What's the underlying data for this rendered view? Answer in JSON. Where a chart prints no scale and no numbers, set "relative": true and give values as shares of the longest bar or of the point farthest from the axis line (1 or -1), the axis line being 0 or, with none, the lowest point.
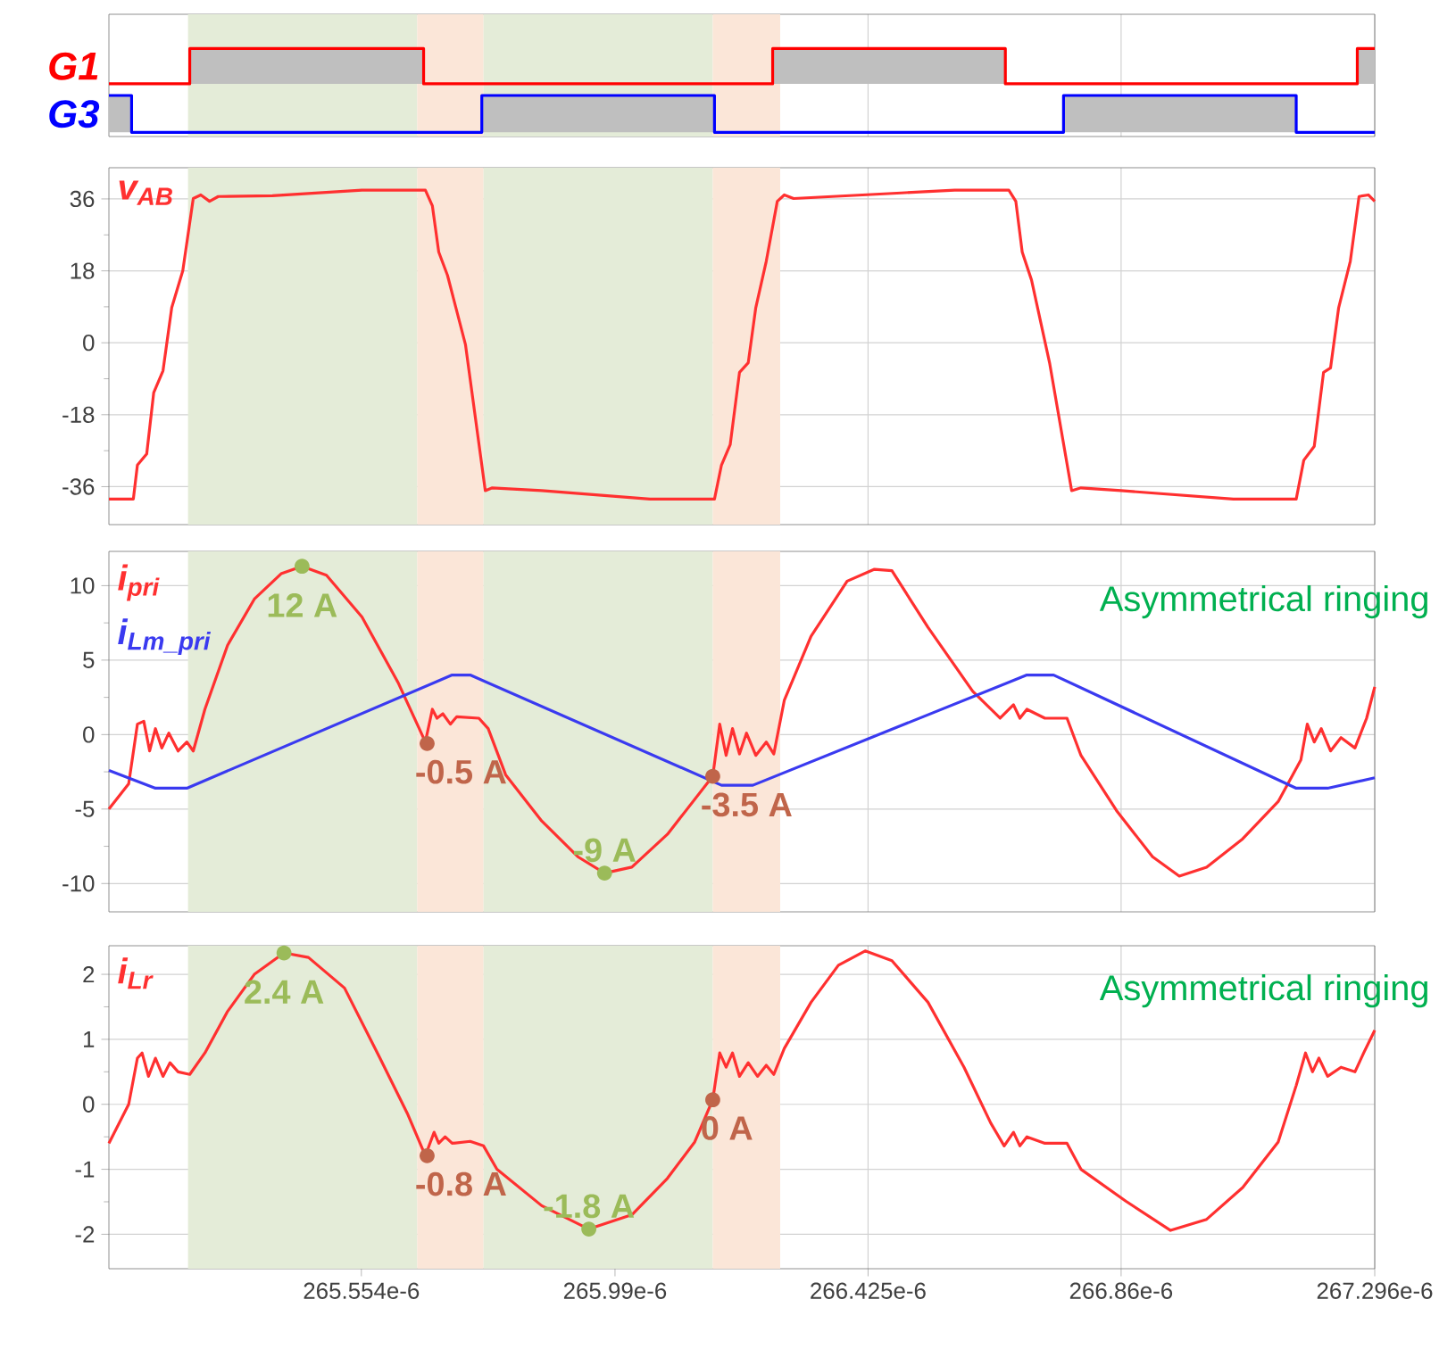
{
  "chart_data": [
    {
      "type": "step",
      "relative": true,
      "xlim": [
        0.00026512,
        0.000267296
      ],
      "xticks": [
        0.000265554,
        0.00026599,
        0.000266425,
        0.00026686,
        0.000267296
      ],
      "tick_labels": false,
      "grid": "x",
      "bands": [
        {
          "axis": "x",
          "from": 0.000265256,
          "to": 0.00026565,
          "color": "#e4ecd8"
        },
        {
          "axis": "x",
          "from": 0.00026565,
          "to": 0.000265764,
          "color": "#fbe6d8"
        },
        {
          "axis": "x",
          "from": 0.000265764,
          "to": 0.000266158,
          "color": "#e4ecd8"
        },
        {
          "axis": "x",
          "from": 0.000266158,
          "to": 0.000266274,
          "color": "#fbe6d8"
        }
      ],
      "series": [
        {
          "name": "G1",
          "color": "#ff0000",
          "x": [
            0.00026512,
            0.000265259,
            0.000265661,
            0.000266261,
            0.000266661,
            0.000267266,
            0.000267296
          ],
          "values": [
            0.58,
            1,
            0.58,
            1,
            0.58,
            1,
            1
          ]
        },
        {
          "name": "G3",
          "color": "#0000ff",
          "x": [
            0.00026512,
            0.000265159,
            0.000265761,
            0.000266161,
            0.000266761,
            0.000267161,
            0.000267296
          ],
          "values": [
            0.44,
            0,
            0.44,
            0,
            0.44,
            0,
            0
          ]
        }
      ]
    },
    {
      "type": "line",
      "xlim": [
        0.00026512,
        0.000267296
      ],
      "ylim": [
        -45.5,
        43.8
      ],
      "yticks": [
        -36,
        -18,
        0,
        18,
        36
      ],
      "xticks": [
        0.000265554,
        0.00026599,
        0.000266425,
        0.00026686,
        0.000267296
      ],
      "tick_labels": "y",
      "grid": true,
      "bands": [
        {
          "axis": "x",
          "from": 0.000265256,
          "to": 0.00026565,
          "color": "#e4ecd8"
        },
        {
          "axis": "x",
          "from": 0.00026565,
          "to": 0.000265764,
          "color": "#fbe6d8"
        },
        {
          "axis": "x",
          "from": 0.000265764,
          "to": 0.000266158,
          "color": "#e4ecd8"
        },
        {
          "axis": "x",
          "from": 0.000266158,
          "to": 0.000266274,
          "color": "#fbe6d8"
        }
      ],
      "series": [
        {
          "name": "v$_{AB}$",
          "color": "#ff3030",
          "x": [
            0.00026512,
            0.000265162,
            0.000265169,
            0.000265185,
            0.000265197,
            0.000265213,
            0.000265228,
            0.000265247,
            0.000265265,
            0.000265278,
            0.000265293,
            0.000265308,
            0.000265401,
            0.000265555,
            0.000265664,
            0.000265676,
            0.000265687,
            0.000265702,
            0.000265733,
            0.000265767,
            0.000265779,
            0.000265864,
            0.00026605,
            0.000266161,
            0.000266173,
            0.000266188,
            0.000266204,
            0.000266219,
            0.000266232,
            0.00026625,
            0.000266269,
            0.000266281,
            0.000266297,
            0.000266482,
            0.000266574,
            0.000266667,
            0.000266679,
            0.00026669,
            0.000266706,
            0.000266737,
            0.000266775,
            0.000266791,
            0.00026686,
            0.000267053,
            0.000267161,
            0.000267174,
            0.000267192,
            0.000267208,
            0.00026722,
            0.000267234,
            0.000267254,
            0.000267269,
            0.000267285,
            0.000267296
          ],
          "values": [
            -39.1,
            -39.1,
            -30.6,
            -27.8,
            -12.5,
            -7.0,
            8.8,
            18.0,
            36.1,
            37.0,
            35.4,
            36.6,
            36.8,
            38.2,
            38.2,
            34.3,
            22.7,
            16.9,
            -0.5,
            -37.0,
            -36.3,
            -37.0,
            -39.1,
            -39.1,
            -30.6,
            -25.5,
            -7.4,
            -5.0,
            8.8,
            20.4,
            35.4,
            37.0,
            36.1,
            37.5,
            38.2,
            38.2,
            35.4,
            22.7,
            15.7,
            -5.0,
            -37.0,
            -36.3,
            -37.0,
            -39.1,
            -39.1,
            -29.4,
            -25.9,
            -7.4,
            -6.3,
            8.8,
            20.4,
            36.6,
            37.0,
            35.4
          ]
        }
      ]
    },
    {
      "type": "line",
      "xlim": [
        0.00026512,
        0.000267296
      ],
      "ylim": [
        -11.9,
        12.3
      ],
      "yticks": [
        -10,
        -5,
        0,
        5,
        10
      ],
      "xticks": [
        0.000265554,
        0.00026599,
        0.000266425,
        0.00026686,
        0.000267296
      ],
      "tick_labels": "y",
      "grid": true,
      "bands": [
        {
          "axis": "x",
          "from": 0.000265256,
          "to": 0.00026565,
          "color": "#e4ecd8"
        },
        {
          "axis": "x",
          "from": 0.00026565,
          "to": 0.000265764,
          "color": "#fbe6d8"
        },
        {
          "axis": "x",
          "from": 0.000265764,
          "to": 0.000266158,
          "color": "#e4ecd8"
        },
        {
          "axis": "x",
          "from": 0.000266158,
          "to": 0.000266274,
          "color": "#fbe6d8"
        }
      ],
      "series": [
        {
          "name": "i$_{pri}$",
          "color": "#ff3030",
          "x": [
            0.00026512,
            0.000265154,
            0.000265169,
            0.00026518,
            0.00026519,
            0.0002652,
            0.000265211,
            0.000265223,
            0.000265239,
            0.000265254,
            0.000265265,
            0.000265285,
            0.000265324,
            0.00026537,
            0.000265416,
            0.000265452,
            0.000265494,
            0.000265555,
            0.000265617,
            0.000265664,
            0.000265676,
            0.000265684,
            0.000265694,
            0.000265707,
            0.000265718,
            0.000265756,
            0.000265772,
            0.000265802,
            0.000265864,
            0.000265926,
            0.000265972,
            0.000266019,
            0.00026608,
            0.000266158,
            0.00026617,
            0.000266181,
            0.000266192,
            0.000266204,
            0.000266216,
            0.000266232,
            0.00026625,
            0.000266263,
            0.000266281,
            0.000266327,
            0.000266389,
            0.000266436,
            0.000266466,
            0.000266528,
            0.000266605,
            0.000266652,
            0.000266675,
            0.000266686,
            0.000266698,
            0.000266729,
            0.000266767,
            0.000266791,
            0.000266852,
            0.000266914,
            0.00026696,
            0.000267007,
            0.000267069,
            0.00026713,
            0.000267169,
            0.00026718,
            0.000267192,
            0.000267204,
            0.00026722,
            0.000267238,
            0.000267262,
            0.000267282,
            0.000267296
          ],
          "values": [
            -5.0,
            -3.3,
            0.7,
            0.9,
            -1.1,
            0.4,
            -0.9,
            0.1,
            -1.1,
            -0.5,
            -1.1,
            1.7,
            6.0,
            9.1,
            10.8,
            11.3,
            10.7,
            7.9,
            3.5,
            -0.5,
            1.7,
            1.1,
            1.4,
            0.7,
            1.2,
            1.1,
            0.4,
            -2.7,
            -5.8,
            -8.2,
            -9.3,
            -8.9,
            -6.7,
            -2.8,
            0.7,
            -1.4,
            0.4,
            -1.3,
            0.1,
            -1.4,
            -0.5,
            -1.3,
            2.3,
            6.6,
            10.3,
            11.1,
            11.0,
            7.2,
            2.9,
            1.1,
            2.0,
            1.1,
            1.7,
            1.1,
            1.1,
            -1.4,
            -5.1,
            -8.2,
            -9.5,
            -8.9,
            -7.0,
            -4.5,
            -1.7,
            0.7,
            -0.5,
            0.4,
            -1.1,
            -0.2,
            -0.9,
            1.1,
            3.2
          ]
        },
        {
          "name": "i$_{Lm_pri}$",
          "color": "#3a3af0",
          "x": [
            0.00026512,
            0.0002652,
            0.000265254,
            0.00026571,
            0.000265741,
            0.000266173,
            0.000266227,
            0.000266698,
            0.000266744,
            0.000267161,
            0.000267215,
            0.000267296
          ],
          "values": [
            -2.4,
            -3.6,
            -3.6,
            4.0,
            4.0,
            -3.4,
            -3.4,
            4.0,
            4.0,
            -3.6,
            -3.6,
            -2.9
          ]
        }
      ],
      "annotations": [
        {
          "text": "12 A",
          "x": 0.000265452,
          "y": 11.3
        },
        {
          "text": "-0.5 A",
          "x": 0.000265667,
          "y": -0.6
        },
        {
          "text": "-9 A",
          "x": 0.000265972,
          "y": -9.3
        },
        {
          "text": "-3.5 A",
          "x": 0.000266158,
          "y": -2.8
        },
        "Asymmetrical ringing"
      ]
    },
    {
      "type": "line",
      "xlim": [
        0.00026512,
        0.000267296
      ],
      "ylim": [
        -2.53,
        2.44
      ],
      "yticks": [
        -2,
        -1,
        0,
        1,
        2
      ],
      "xticks": [
        {
          "value": 0.000265554,
          "label": "265.554e-6"
        },
        {
          "value": 0.00026599,
          "label": "265.99e-6"
        },
        {
          "value": 0.000266425,
          "label": "266.425e-6"
        },
        {
          "value": 0.00026686,
          "label": "266.86e-6"
        },
        {
          "value": 0.000267296,
          "label": "267.296e-6"
        }
      ],
      "grid": true,
      "bands": [
        {
          "axis": "x",
          "from": 0.000265256,
          "to": 0.00026565,
          "color": "#e4ecd8"
        },
        {
          "axis": "x",
          "from": 0.00026565,
          "to": 0.000265764,
          "color": "#fbe6d8"
        },
        {
          "axis": "x",
          "from": 0.000265764,
          "to": 0.000266158,
          "color": "#e4ecd8"
        },
        {
          "axis": "x",
          "from": 0.000266158,
          "to": 0.000266274,
          "color": "#fbe6d8"
        }
      ],
      "series": [
        {
          "name": "i$_{Lr}$",
          "color": "#ff3030",
          "x": [
            0.00026512,
            0.000265154,
            0.000265169,
            0.000265177,
            0.000265188,
            0.0002652,
            0.000265213,
            0.000265225,
            0.000265239,
            0.000265259,
            0.000265285,
            0.000265324,
            0.00026537,
            0.000265421,
            0.000265463,
            0.000265525,
            0.000265586,
            0.000265633,
            0.000265664,
            0.000265679,
            0.000265687,
            0.000265698,
            0.00026571,
            0.000265741,
            0.000265764,
            0.000265787,
            0.000265864,
            0.000265945,
            0.000266019,
            0.00026608,
            0.000266127,
            0.000266158,
            0.00026617,
            0.000266181,
            0.000266192,
            0.000266204,
            0.000266219,
            0.000266235,
            0.00026625,
            0.000266263,
            0.000266281,
            0.000266327,
            0.000266374,
            0.00026642,
            0.000266466,
            0.000266528,
            0.00026659,
            0.000266636,
            0.000266659,
            0.000266675,
            0.000266686,
            0.000266698,
            0.000266729,
            0.000266767,
            0.000266791,
            0.000266868,
            0.000266945,
            0.000267007,
            0.000267069,
            0.00026713,
            0.000267161,
            0.000267177,
            0.000267189,
            0.0002672,
            0.000267215,
            0.000267238,
            0.000267262,
            0.000267277,
            0.000267296
          ],
          "values": [
            -0.6,
            0.0,
            0.71,
            0.79,
            0.43,
            0.71,
            0.43,
            0.64,
            0.5,
            0.46,
            0.79,
            1.43,
            2.0,
            2.33,
            2.26,
            1.79,
            0.71,
            -0.14,
            -0.79,
            -0.43,
            -0.6,
            -0.5,
            -0.6,
            -0.57,
            -0.64,
            -1.0,
            -1.56,
            -1.92,
            -1.7,
            -1.14,
            -0.58,
            0.07,
            0.79,
            0.57,
            0.79,
            0.43,
            0.64,
            0.43,
            0.6,
            0.46,
            0.86,
            1.57,
            2.14,
            2.36,
            2.21,
            1.57,
            0.57,
            -0.29,
            -0.64,
            -0.43,
            -0.64,
            -0.5,
            -0.6,
            -0.6,
            -1.0,
            -1.49,
            -1.94,
            -1.77,
            -1.28,
            -0.58,
            0.29,
            0.79,
            0.5,
            0.71,
            0.43,
            0.57,
            0.5,
            0.79,
            1.14
          ]
        }
      ],
      "annotations": [
        {
          "text": "2.4 A",
          "x": 0.000265421,
          "y": 2.33
        },
        {
          "text": "-0.8 A",
          "x": 0.000265667,
          "y": -0.79
        },
        {
          "text": "-1.8 A",
          "x": 0.000265945,
          "y": -1.92
        },
        {
          "text": "0 A",
          "x": 0.000266158,
          "y": 0.07
        },
        "Asymmetrical ringing"
      ]
    }
  ]
}
